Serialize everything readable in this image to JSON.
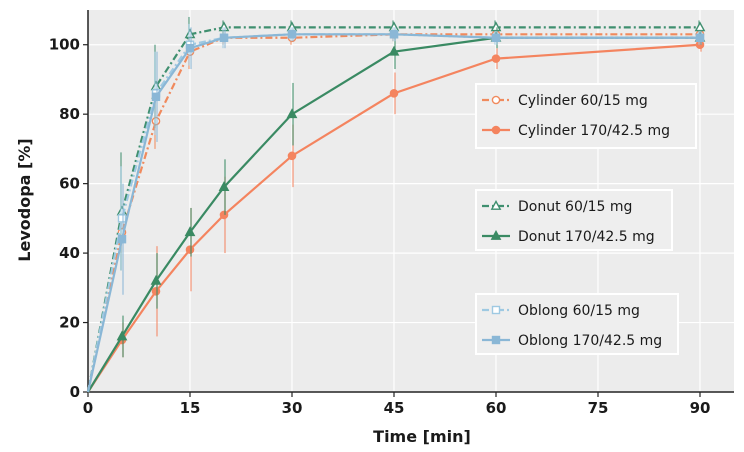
{
  "chart_data": {
    "type": "line",
    "xlabel": "Time [min]",
    "ylabel": "Levodopa [%]",
    "xlim": [
      0,
      95
    ],
    "ylim": [
      0,
      110
    ],
    "xticks": [
      0,
      15,
      30,
      45,
      60,
      75,
      90
    ],
    "yticks": [
      0,
      20,
      40,
      60,
      80,
      100
    ],
    "grid": true,
    "legend_position": "right",
    "series": [
      {
        "name": "Cylinder 60/15 mg",
        "color": "#f08a5d",
        "line_style": "dashdot",
        "marker": "open-circle",
        "x": [
          0,
          5,
          10,
          15,
          20,
          30,
          45,
          60,
          90
        ],
        "y": [
          0,
          46,
          78,
          98,
          102,
          102,
          103,
          103,
          103
        ],
        "err": [
          0,
          6,
          8,
          5,
          2,
          2,
          2,
          2,
          2
        ]
      },
      {
        "name": "Cylinder 170/42.5 mg",
        "color": "#f4845f",
        "line_style": "solid",
        "marker": "filled-circle",
        "x": [
          0,
          5,
          10,
          15,
          20,
          30,
          45,
          60,
          90
        ],
        "y": [
          0,
          15,
          29,
          41,
          51,
          68,
          86,
          96,
          100
        ],
        "err": [
          0,
          5,
          13,
          12,
          11,
          9,
          6,
          3,
          2
        ]
      },
      {
        "name": "Donut 60/15 mg",
        "color": "#3f8f6f",
        "line_style": "dashdot",
        "marker": "open-triangle",
        "x": [
          0,
          5,
          10,
          15,
          20,
          30,
          45,
          60,
          90
        ],
        "y": [
          0,
          52,
          88,
          103,
          105,
          105,
          105,
          105,
          105
        ],
        "err": [
          0,
          17,
          12,
          5,
          2,
          2,
          2,
          2,
          2
        ]
      },
      {
        "name": "Donut 170/42.5 mg",
        "color": "#3a8a63",
        "line_style": "solid",
        "marker": "filled-triangle",
        "x": [
          0,
          5,
          10,
          15,
          20,
          30,
          45,
          60,
          90
        ],
        "y": [
          0,
          16,
          32,
          46,
          59,
          80,
          98,
          102,
          102
        ],
        "err": [
          0,
          6,
          8,
          7,
          8,
          9,
          5,
          3,
          2
        ]
      },
      {
        "name": "Oblong 60/15 mg",
        "color": "#9ec9e2",
        "line_style": "dashdot",
        "marker": "open-square",
        "x": [
          0,
          5,
          10,
          15,
          20,
          30,
          45,
          60,
          90
        ],
        "y": [
          0,
          50,
          86,
          100,
          102,
          103,
          103,
          102,
          102
        ],
        "err": [
          0,
          15,
          12,
          6,
          3,
          2,
          2,
          2,
          2
        ]
      },
      {
        "name": "Oblong 170/42.5 mg",
        "color": "#8ab7d6",
        "line_style": "solid",
        "marker": "filled-square",
        "x": [
          0,
          5,
          10,
          15,
          20,
          30,
          45,
          60,
          90
        ],
        "y": [
          0,
          44,
          85,
          99,
          102,
          103,
          103,
          102,
          102
        ],
        "err": [
          0,
          16,
          13,
          6,
          3,
          2,
          2,
          2,
          2
        ]
      }
    ]
  }
}
